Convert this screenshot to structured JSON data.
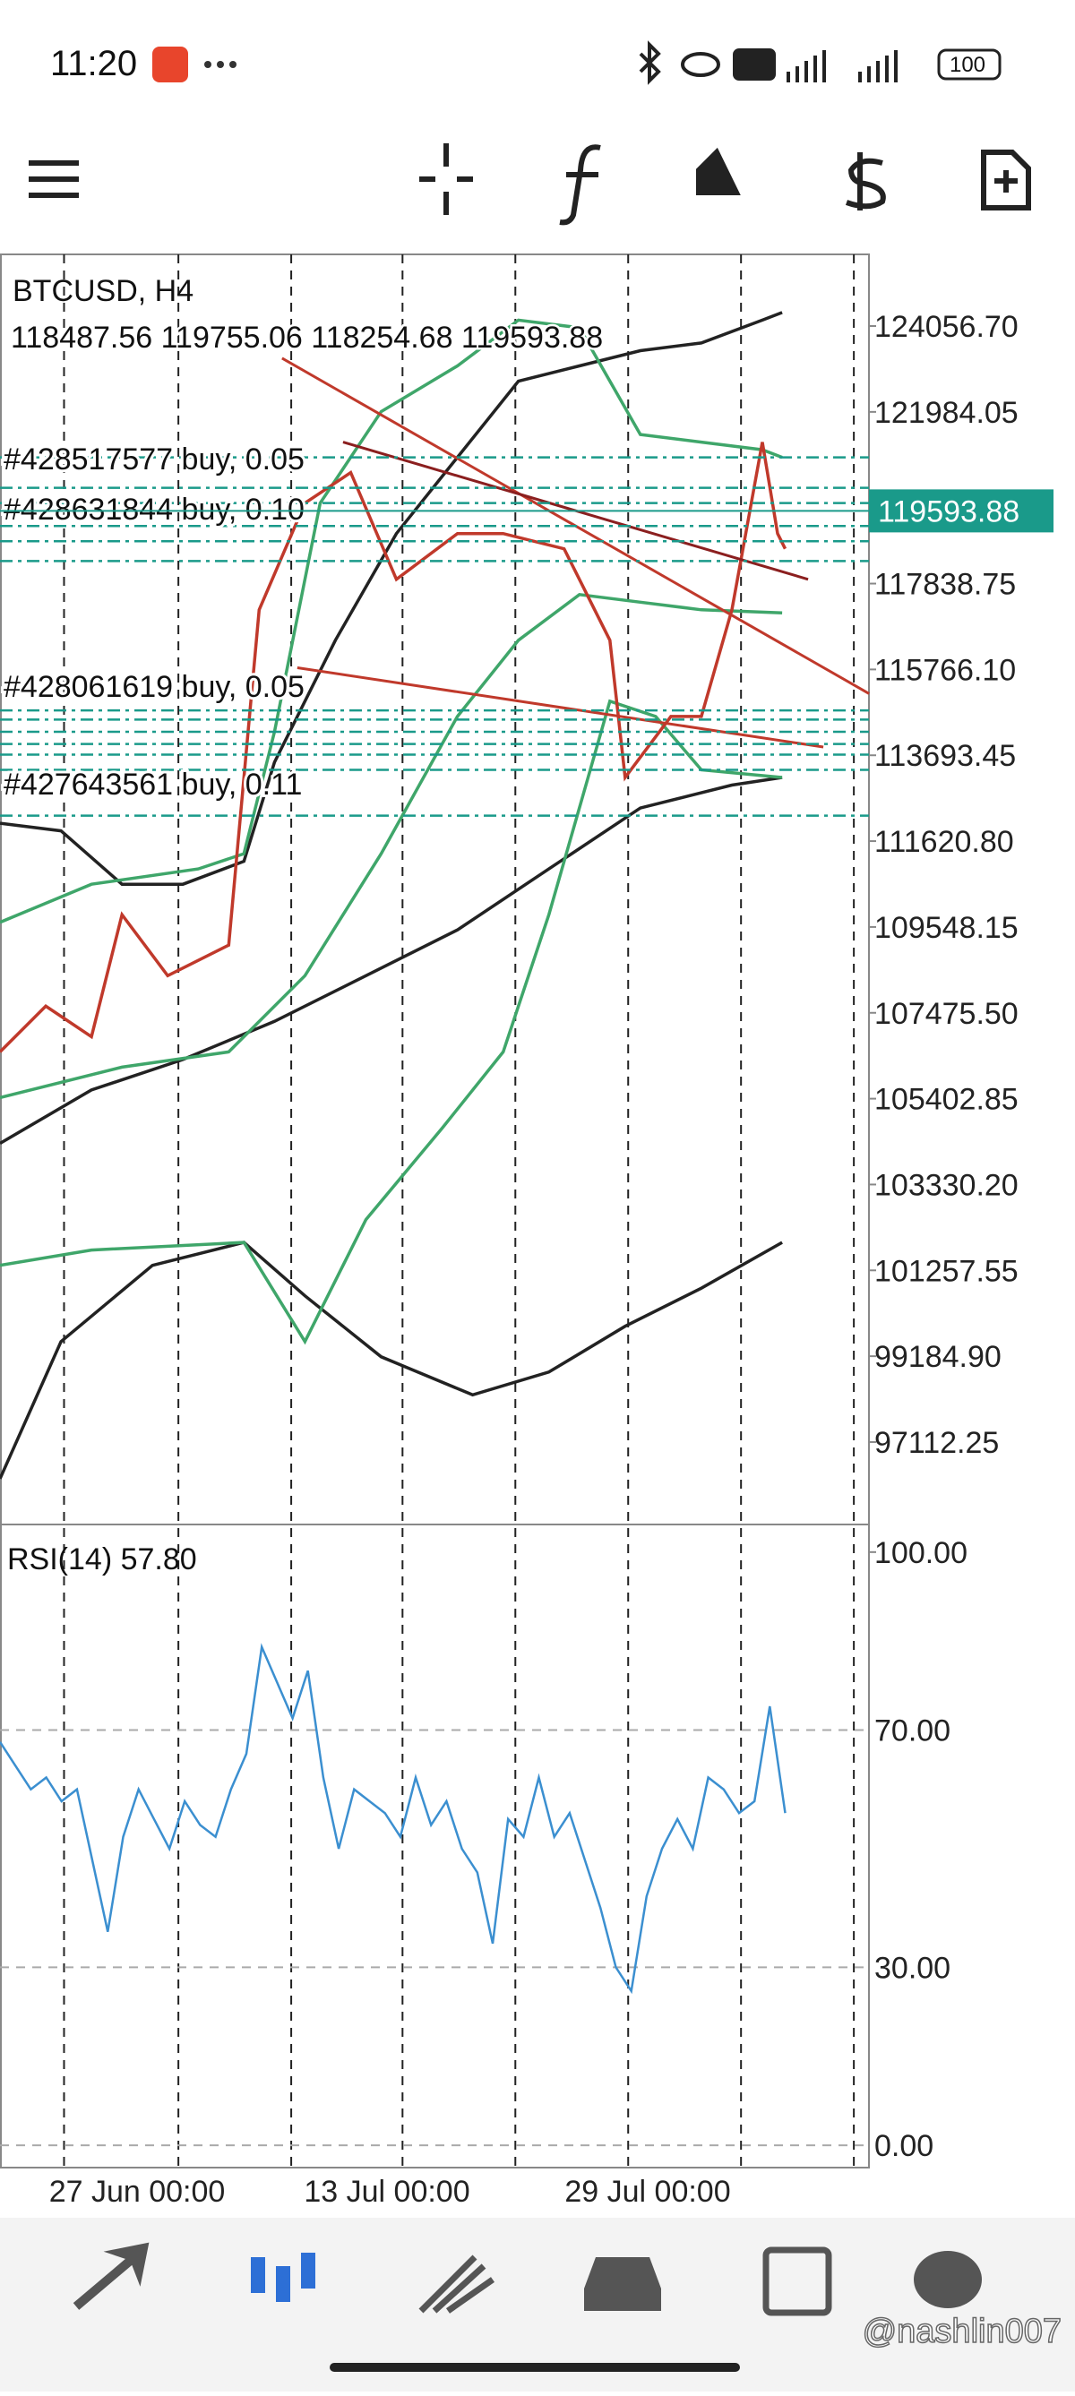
{
  "status_bar": {
    "time": "11:20",
    "battery": "100"
  },
  "chart_data": [
    {
      "type": "candlestick",
      "title": "BTCUSD, H4",
      "subtitle": "118487.56 119755.06 118254.68 119593.88",
      "last_price": 119593.88,
      "annotations": [
        "#428517577 buy, 0.05",
        "#428631844 buy, 0.10",
        "#428061619 buy, 0.05",
        "#427643561 buy, 0.11"
      ],
      "ylim": [
        95122,
        125787
      ],
      "yticks": [
        {
          "value": 124056.7,
          "label": "124056.70"
        },
        121984.05,
        117838.75,
        {
          "value": 115766.1,
          "label": "115766.10"
        },
        113693.45,
        {
          "value": 111620.8,
          "label": "111620.80"
        },
        109548.15,
        {
          "value": 107475.5,
          "label": "107475.50"
        },
        105402.85,
        {
          "value": 103330.2,
          "label": "103330.20"
        },
        101257.55,
        {
          "value": 99184.9,
          "label": "99184.90"
        },
        97112.25
      ],
      "categories": [
        "27 Jun 00:00",
        "13 Jul 00:00",
        "29 Jul 00:00"
      ]
    },
    {
      "type": "line",
      "title": "RSI(14) 57.80",
      "color": "#3b8fd0",
      "ylim": [
        -2.7,
        103.9
      ],
      "yticks": [
        {
          "value": 100,
          "label": "100.00"
        },
        {
          "value": 70,
          "label": "70.00"
        },
        {
          "value": 30,
          "label": "30.00"
        },
        {
          "value": 0,
          "label": "0.00"
        }
      ],
      "values": [
        68,
        64,
        60,
        62,
        58,
        60,
        48,
        36,
        52,
        60,
        55,
        50,
        58,
        54,
        52,
        60,
        66,
        84,
        78,
        72,
        80,
        62,
        50,
        60,
        58,
        56,
        52,
        62,
        54,
        58,
        50,
        46,
        34,
        55,
        52,
        62,
        52,
        56,
        48,
        40,
        30,
        26,
        42,
        50,
        55,
        50,
        62,
        60,
        56,
        58,
        74,
        56
      ]
    }
  ],
  "watermark": "@nashlin007"
}
